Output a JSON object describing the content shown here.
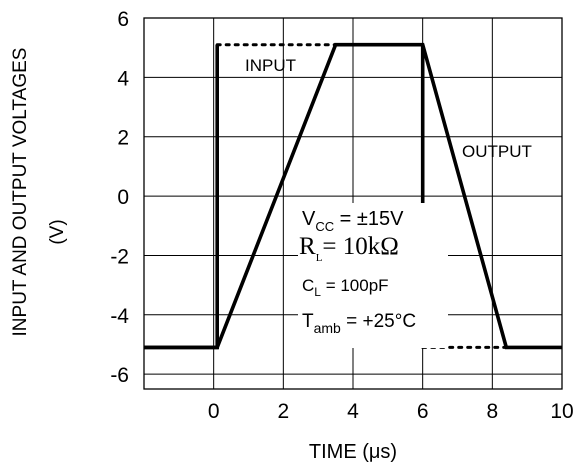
{
  "chart_data": {
    "type": "line",
    "title": "",
    "xlabel": "TIME (μs)",
    "ylabel": "INPUT AND OUTPUT VOLTAGES",
    "ylabel_unit": "(V)",
    "xlim": [
      -2,
      10
    ],
    "ylim": [
      -6.5,
      6
    ],
    "x_ticks": [
      0,
      2,
      4,
      6,
      8,
      10
    ],
    "y_ticks": [
      6,
      4,
      2,
      0,
      -2,
      -4,
      -6
    ],
    "grid": true,
    "series": [
      {
        "name": "INPUT",
        "segments": [
          {
            "style": "solid",
            "x": [
              -2,
              0.1,
              0.1
            ],
            "y": [
              -5.1,
              -5.1,
              5.1
            ]
          },
          {
            "style": "dotted",
            "x": [
              0.1,
              3.5
            ],
            "y": [
              5.1,
              5.1
            ]
          },
          {
            "style": "solid",
            "x": [
              6,
              6
            ],
            "y": [
              5.1,
              -5.1
            ]
          },
          {
            "style": "dotted",
            "x": [
              6,
              8.4
            ],
            "y": [
              -5.1,
              -5.1
            ]
          }
        ]
      },
      {
        "name": "OUTPUT",
        "segments": [
          {
            "style": "solid",
            "x": [
              -2,
              0.1,
              3.5,
              6.0,
              8.4,
              10
            ],
            "y": [
              -5.1,
              -5.1,
              5.1,
              5.1,
              -5.1,
              -5.1
            ]
          }
        ]
      }
    ],
    "annotations": {
      "input_label": "INPUT",
      "output_label": "OUTPUT",
      "vcc": {
        "main": "V",
        "sub": "CC",
        "rest": " = ±15V"
      },
      "rl": {
        "main": "R",
        "sub": "L",
        "rest": "= 10kΩ"
      },
      "cl": {
        "main": "C",
        "sub": "L",
        "rest": " = 100pF"
      },
      "tamb": {
        "main": "T",
        "sub": "amb",
        "rest": " = +25°C"
      }
    }
  }
}
